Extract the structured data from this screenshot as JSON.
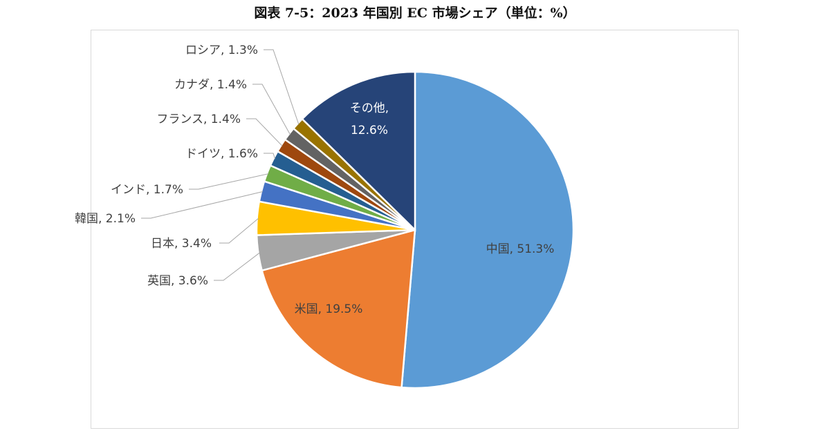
{
  "title": "図表 7-5：2023 年国別 EC 市場シェア（単位：%）",
  "chart_data": {
    "type": "pie",
    "title": "図表 7-5：2023 年国別 EC 市場シェア（単位：%）",
    "unit": "%",
    "slices": [
      {
        "label": "中国",
        "value": 51.3,
        "color": "#5b9bd5",
        "display": "中国, 51.3%"
      },
      {
        "label": "米国",
        "value": 19.5,
        "color": "#ed7d31",
        "display": "米国, 19.5%"
      },
      {
        "label": "英国",
        "value": 3.6,
        "color": "#a5a5a5",
        "display": "英国, 3.6%"
      },
      {
        "label": "日本",
        "value": 3.4,
        "color": "#ffc000",
        "display": "日本, 3.4%"
      },
      {
        "label": "韓国",
        "value": 2.1,
        "color": "#4472c4",
        "display": "韓国, 2.1%"
      },
      {
        "label": "インド",
        "value": 1.7,
        "color": "#70ad47",
        "display": "インド, 1.7%"
      },
      {
        "label": "ドイツ",
        "value": 1.6,
        "color": "#255e91",
        "display": "ドイツ, 1.6%"
      },
      {
        "label": "フランス",
        "value": 1.4,
        "color": "#9e480e",
        "display": "フランス, 1.4%"
      },
      {
        "label": "カナダ",
        "value": 1.4,
        "color": "#636363",
        "display": "カナダ, 1.4%"
      },
      {
        "label": "ロシア",
        "value": 1.3,
        "color": "#997300",
        "display": "ロシア, 1.3%"
      },
      {
        "label": "その他",
        "value": 12.6,
        "color": "#264478",
        "display": "その他, 12.6%"
      }
    ],
    "legend": "none"
  }
}
